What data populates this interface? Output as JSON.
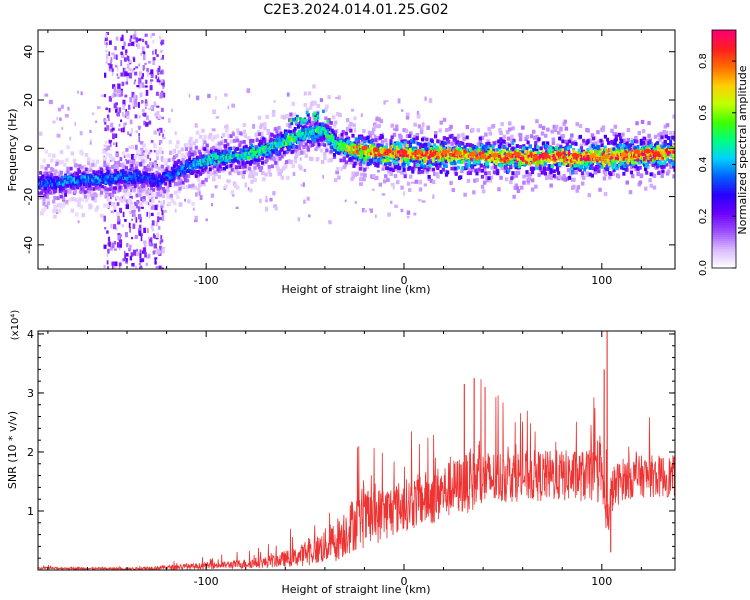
{
  "figure": {
    "title": "C2E3.2024.014.01.25.G02"
  },
  "chart_data": [
    {
      "type": "heatmap",
      "name": "spectrogram",
      "xlabel": "Height of straight line (km)",
      "ylabel": "Frequency (Hz)",
      "xlim": [
        -185,
        137
      ],
      "ylim": [
        -50,
        49
      ],
      "xticks": [
        -100,
        0,
        100
      ],
      "xtick_labels": [
        "-100",
        "0",
        "100"
      ],
      "yticks": [
        -40,
        -20,
        0,
        20,
        40
      ],
      "ytick_labels": [
        "-40",
        "-20",
        "0",
        "20",
        "40"
      ],
      "colorbar": {
        "label": "Normalized spectral amplitude",
        "range": [
          0,
          0.92
        ],
        "ticks": [
          0.0,
          0.2,
          0.4,
          0.6,
          0.8
        ],
        "tick_labels": [
          "0.0",
          "0.2",
          "0.4",
          "0.6",
          "0.8"
        ],
        "colormap": [
          "#ffffff",
          "#d9b8ff",
          "#9a4dff",
          "#6a00ff",
          "#2a00ff",
          "#0060ff",
          "#00d0ff",
          "#00ff80",
          "#40ff00",
          "#c0ff00",
          "#ffd000",
          "#ff7000",
          "#ff2020",
          "#ff0070"
        ]
      },
      "ridge": {
        "x": [
          -185,
          -170,
          -150,
          -135,
          -125,
          -110,
          -100,
          -90,
          -80,
          -70,
          -60,
          -50,
          -42,
          -35,
          -25,
          -10,
          0,
          20,
          40,
          60,
          80,
          100,
          120,
          137
        ],
        "freq": [
          -14,
          -13,
          -12,
          -11,
          -13,
          -7,
          -4,
          -3,
          -2,
          0,
          4,
          7,
          8,
          2,
          0,
          -1,
          -2,
          -2,
          -3,
          -3,
          -3,
          -3,
          -2,
          -1
        ],
        "amplitude": [
          0.35,
          0.38,
          0.36,
          0.34,
          0.3,
          0.4,
          0.45,
          0.45,
          0.48,
          0.48,
          0.5,
          0.5,
          0.45,
          0.55,
          0.7,
          0.78,
          0.82,
          0.8,
          0.75,
          0.82,
          0.85,
          0.8,
          0.84,
          0.8
        ]
      },
      "broadband_interference": {
        "x_range": [
          -152,
          -122
        ],
        "amplitude": 0.15
      }
    },
    {
      "type": "line",
      "name": "snr",
      "xlabel": "Height of straight line (km)",
      "ylabel": "SNR (10 * v/v)",
      "scale_label": "(x10⁴)",
      "xlim": [
        -185,
        137
      ],
      "ylim": [
        0,
        4.05
      ],
      "xticks": [
        -100,
        0,
        100
      ],
      "xtick_labels": [
        "-100",
        "0",
        "100"
      ],
      "yticks": [
        1,
        2,
        3,
        4
      ],
      "ytick_labels": [
        "1",
        "2",
        "3",
        "4"
      ],
      "color": "#ee3333",
      "envelope": {
        "x": [
          -185,
          -140,
          -110,
          -90,
          -70,
          -55,
          -45,
          -35,
          -25,
          -15,
          0,
          15,
          25,
          35,
          45,
          55,
          70,
          85,
          95,
          100,
          103,
          105,
          110,
          120,
          137
        ],
        "base": [
          0.03,
          0.02,
          0.05,
          0.08,
          0.12,
          0.2,
          0.3,
          0.45,
          0.75,
          0.85,
          1.05,
          1.2,
          1.35,
          1.45,
          1.5,
          1.55,
          1.55,
          1.55,
          1.55,
          1.5,
          0.8,
          1.3,
          1.5,
          1.55,
          1.55
        ],
        "spread": [
          0.02,
          0.02,
          0.06,
          0.08,
          0.12,
          0.2,
          0.3,
          0.45,
          0.6,
          0.6,
          0.55,
          0.6,
          0.6,
          0.65,
          0.6,
          0.55,
          0.55,
          0.55,
          0.55,
          0.55,
          0.4,
          0.5,
          0.45,
          0.45,
          0.45
        ]
      },
      "peaks": [
        {
          "x": 102.7,
          "y": 4.05
        },
        {
          "x": 101.2,
          "y": 3.4
        },
        {
          "x": 35.5,
          "y": 3.25
        },
        {
          "x": 30.5,
          "y": 3.15
        },
        {
          "x": 41.0,
          "y": 3.1
        },
        {
          "x": 104.5,
          "y": 0.3
        }
      ]
    }
  ]
}
